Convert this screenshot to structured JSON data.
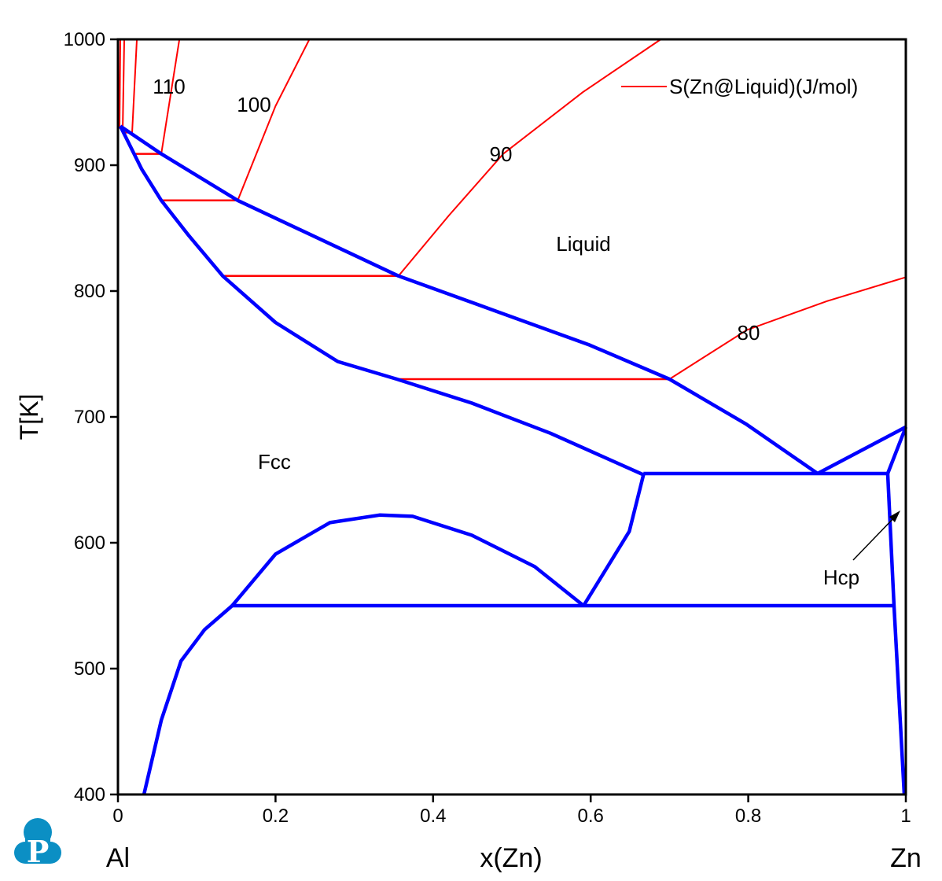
{
  "chart_data": {
    "type": "line",
    "xlabel": "x(Zn)",
    "ylabel": "T[K]",
    "xlim": [
      0,
      1
    ],
    "ylim": [
      400,
      1000
    ],
    "xticks": [
      "0",
      "0.2",
      "0.4",
      "0.6",
      "0.8",
      "1"
    ],
    "yticks": [
      "400",
      "500",
      "600",
      "700",
      "800",
      "900",
      "1000"
    ],
    "x_end_labels": {
      "left": "Al",
      "right": "Zn"
    },
    "legend": {
      "label": "S(Zn@Liquid)(J/mol)",
      "placement": "top-right",
      "color": "#ff0000"
    },
    "phase_colors": {
      "boundary": "#0000ff",
      "isentrope": "#ff0000"
    },
    "phase_labels": {
      "liquid": "Liquid",
      "fcc": "Fcc",
      "hcp": "Hcp"
    },
    "boundaries": [
      [
        [
          0.003,
          931
        ],
        [
          0.055,
          909
        ],
        [
          0.152,
          872
        ],
        [
          0.356,
          812
        ],
        [
          0.449,
          791
        ],
        [
          0.599,
          757
        ],
        [
          0.7,
          730
        ],
        [
          0.798,
          694
        ],
        [
          0.888,
          655
        ]
      ],
      [
        [
          0.003,
          931
        ],
        [
          0.03,
          897
        ],
        [
          0.055,
          872
        ],
        [
          0.09,
          844
        ],
        [
          0.133,
          812
        ],
        [
          0.2,
          775
        ],
        [
          0.279,
          744
        ],
        [
          0.354,
          730
        ],
        [
          0.449,
          711
        ],
        [
          0.549,
          687
        ],
        [
          0.667,
          654
        ]
      ],
      [
        [
          0.667,
          655
        ],
        [
          0.977,
          655
        ]
      ],
      [
        [
          0.888,
          655
        ],
        [
          1,
          692
        ]
      ],
      [
        [
          0.977,
          655
        ],
        [
          1,
          692
        ]
      ],
      [
        [
          0.977,
          655
        ],
        [
          0.985,
          550
        ],
        [
          0.998,
          400
        ]
      ],
      [
        [
          0.145,
          550
        ],
        [
          0.2,
          591
        ],
        [
          0.269,
          616
        ],
        [
          0.332,
          622
        ],
        [
          0.374,
          621
        ],
        [
          0.449,
          606
        ],
        [
          0.529,
          581
        ],
        [
          0.591,
          550
        ]
      ],
      [
        [
          0.591,
          550
        ],
        [
          0.649,
          609
        ],
        [
          0.667,
          654
        ]
      ],
      [
        [
          0.145,
          550
        ],
        [
          0.985,
          550
        ]
      ],
      [
        [
          0.145,
          550
        ],
        [
          0.11,
          531
        ],
        [
          0.08,
          506
        ],
        [
          0.055,
          459
        ],
        [
          0.033,
          400
        ]
      ]
    ],
    "isentropes": [
      {
        "label": "80",
        "points": [
          [
            0.7,
            730
          ],
          [
            0.798,
            769
          ],
          [
            0.9,
            792
          ],
          [
            1,
            811
          ]
        ]
      },
      {
        "label": "90",
        "points": [
          [
            0.356,
            812
          ],
          [
            0.42,
            860
          ],
          [
            0.489,
            909
          ],
          [
            0.59,
            958
          ],
          [
            0.689,
            1000
          ]
        ]
      },
      {
        "label": "100",
        "points": [
          [
            0.152,
            872
          ],
          [
            0.2,
            947
          ],
          [
            0.243,
            1000
          ]
        ]
      },
      {
        "label": "110",
        "points": [
          [
            0.055,
            909
          ],
          [
            0.078,
            1000
          ]
        ]
      },
      {
        "label": "",
        "points": [
          [
            0.018,
            926
          ],
          [
            0.024,
            1000
          ]
        ]
      },
      {
        "label": "",
        "points": [
          [
            0.006,
            927
          ],
          [
            0.008,
            1000
          ]
        ]
      },
      {
        "label": "",
        "points": [
          [
            0.002,
            929
          ],
          [
            0.003,
            1000
          ]
        ]
      }
    ],
    "tie_lines": [
      [
        730,
        0.354,
        0.7
      ],
      [
        812,
        0.133,
        0.356
      ],
      [
        872,
        0.055,
        0.152
      ],
      [
        909,
        0.02,
        0.055
      ],
      [
        926,
        0.005,
        0.018
      ]
    ]
  }
}
